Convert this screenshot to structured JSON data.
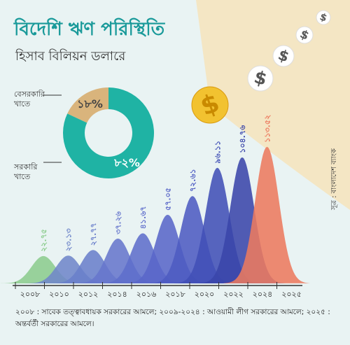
{
  "title": "বিদেশি ঋণ পরিস্থিতি",
  "subtitle": "হিসাব বিলিয়ন ডলারে",
  "source": "সূত্র : বাংলাদেশ ব্যাংক",
  "coin_symbol": "$",
  "footnote": "২০০৮ : সাবেক তত্ত্বাবধায়ক সরকারের আমলে; ২০০৯-২০২৪ : আওয়ামী লীগ সরকারের আমলে; ২০২৫ : অন্তর্বর্তী সরকারের আমলে।",
  "chart_data": [
    {
      "type": "pie",
      "categories": [
        "বেসরকারি খাতে",
        "সরকারি খাতে"
      ],
      "values": [
        18,
        82
      ],
      "value_labels": [
        "১৮%",
        "৮২%"
      ],
      "colors": [
        "#d9b47c",
        "#1fb3a4"
      ]
    },
    {
      "type": "bell",
      "categories": [
        "২০০৮",
        "২০১০",
        "২০১২",
        "২০১৪",
        "২০১৬",
        "২০১৮",
        "২০২০",
        "২০২২",
        "২০২৪",
        "২০২৫"
      ],
      "values": [
        22.75,
        23.13,
        27.77,
        37.26,
        41.67,
        57.05,
        72.61,
        96.11,
        104.76,
        113.52
      ],
      "value_labels": [
        "২২.৭৫",
        "২৩.১৩",
        "২৭.৭৭",
        "৩৭.২৬",
        "৪১.৬৭",
        "৫৭.০৫",
        "৭২.৬১",
        "৯৬.১১",
        "১০৪.৭৬",
        "১১৩.৫২"
      ],
      "colors": [
        "#8ccc8e",
        "#6f86c9",
        "#6a7fcb",
        "#6676cc",
        "#5f6ecb",
        "#5966c8",
        "#4d5bc2",
        "#4150b6",
        "#3a46aa",
        "#ec7a5f"
      ]
    }
  ]
}
